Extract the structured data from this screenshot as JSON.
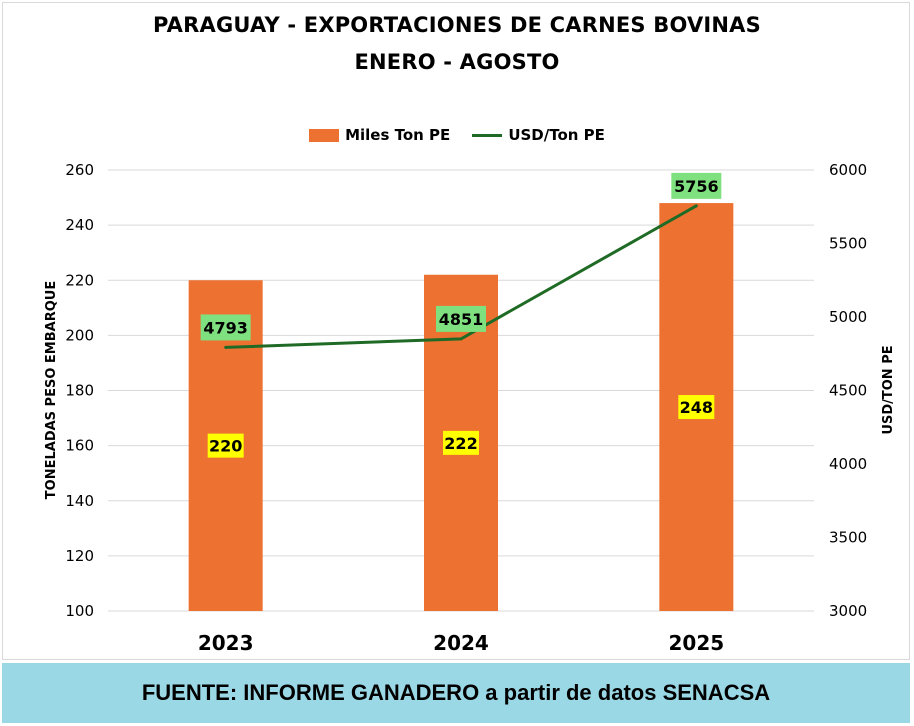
{
  "chart_data": {
    "type": "bar",
    "title": "PARAGUAY - EXPORTACIONES DE CARNES BOVINAS",
    "subtitle": "ENERO - AGOSTO",
    "categories": [
      "2023",
      "2024",
      "2025"
    ],
    "series": [
      {
        "name": "Miles Ton PE",
        "type": "bar",
        "axis": "left",
        "values": [
          220,
          222,
          248
        ],
        "color": "#ed7130"
      },
      {
        "name": "USD/Ton PE",
        "type": "line",
        "axis": "right",
        "values": [
          4793,
          4851,
          5756
        ],
        "color": "#1f6b25"
      }
    ],
    "ylabel": "TONELADAS PESO EMBARQUE",
    "y2label": "USD/TON PE",
    "ylim": [
      100,
      260
    ],
    "y2lim": [
      3000,
      6000
    ],
    "yticks": [
      100,
      120,
      140,
      160,
      180,
      200,
      220,
      240,
      260
    ],
    "y2ticks": [
      3000,
      3500,
      4000,
      4500,
      5000,
      5500,
      6000
    ],
    "bar_label_color": "#ffff00",
    "line_label_color": "#7fe07f",
    "legend_position": "top",
    "grid": true
  },
  "footer": "FUENTE: INFORME GANADERO a partir de datos SENACSA"
}
